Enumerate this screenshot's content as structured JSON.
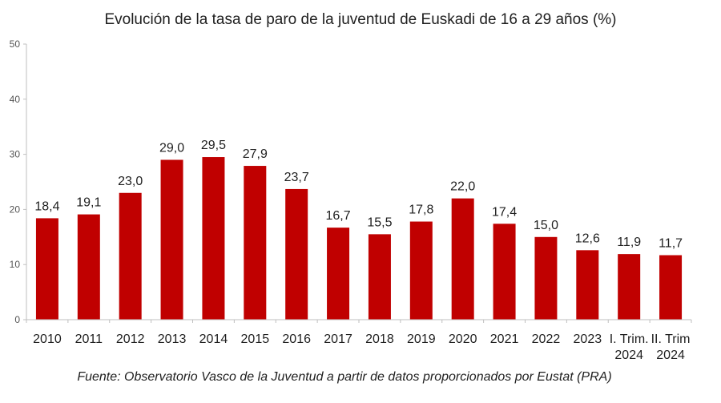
{
  "chart_data": {
    "type": "bar",
    "title": "Evolución de la tasa de paro de la juventud de Euskadi de 16 a 29 años (%)",
    "categories": [
      [
        "2010"
      ],
      [
        "2011"
      ],
      [
        "2012"
      ],
      [
        "2013"
      ],
      [
        "2014"
      ],
      [
        "2015"
      ],
      [
        "2016"
      ],
      [
        "2017"
      ],
      [
        "2018"
      ],
      [
        "2019"
      ],
      [
        "2020"
      ],
      [
        "2021"
      ],
      [
        "2022"
      ],
      [
        "2023"
      ],
      [
        "I. Trim.",
        "2024"
      ],
      [
        "II. Trim",
        "2024"
      ]
    ],
    "values": [
      18.4,
      19.1,
      23.0,
      29.0,
      29.5,
      27.9,
      23.7,
      16.7,
      15.5,
      17.8,
      22.0,
      17.4,
      15.0,
      12.6,
      11.9,
      11.7
    ],
    "data_labels": [
      "18,4",
      "19,1",
      "23,0",
      "29,0",
      "29,5",
      "27,9",
      "23,7",
      "16,7",
      "15,5",
      "17,8",
      "22,0",
      "17,4",
      "15,0",
      "12,6",
      "11,9",
      "11,7"
    ],
    "y_ticks": [
      0,
      10,
      20,
      30,
      40,
      50
    ],
    "ylim": [
      0,
      50
    ],
    "grid": false,
    "legend": "none",
    "bar_color": "#c00000",
    "source": "Fuente: Observatorio Vasco de la Juventud a partir de datos proporcionados por Eustat  (PRA)"
  }
}
